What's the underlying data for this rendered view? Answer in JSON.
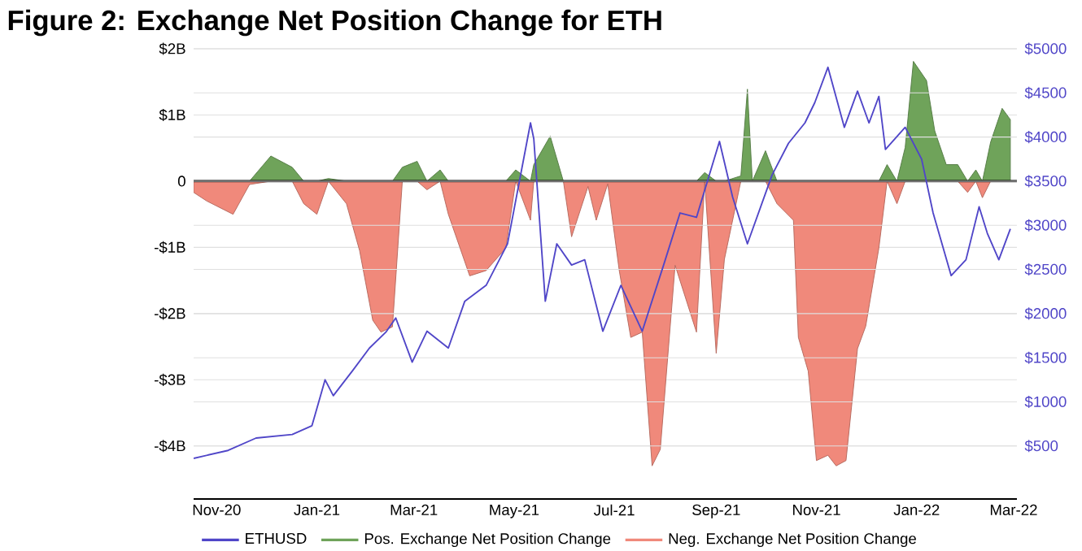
{
  "chart_data": {
    "type": "area",
    "title": "Figure 2: Exchange Net Position Change for ETH",
    "xlim": [
      "2020-10-18",
      "2022-03-03"
    ],
    "xticks": [
      {
        "value": "2020-11-01",
        "label": "Nov-20"
      },
      {
        "value": "2021-01-01",
        "label": "Jan-21"
      },
      {
        "value": "2021-03-01",
        "label": "Mar-21"
      },
      {
        "value": "2021-05-01",
        "label": "May-21"
      },
      {
        "value": "2021-07-01",
        "label": "Jul-21"
      },
      {
        "value": "2021-09-01",
        "label": "Sep-21"
      },
      {
        "value": "2021-11-01",
        "label": "Nov-21"
      },
      {
        "value": "2022-01-01",
        "label": "Jan-22"
      },
      {
        "value": "2022-03-01",
        "label": "Mar-22"
      }
    ],
    "ylim": [
      -4.8,
      2
    ],
    "yticks": [
      {
        "value": 2,
        "label": "$2B"
      },
      {
        "value": 1,
        "label": "$1B"
      },
      0,
      {
        "value": -1,
        "label": "-$1B"
      },
      {
        "value": -2,
        "label": "-$2B"
      },
      {
        "value": -3,
        "label": "-$3B"
      },
      {
        "value": -4,
        "label": "-$4B"
      }
    ],
    "y2lim": [
      -100,
      5000
    ],
    "y2ticks": [
      {
        "value": 500,
        "label": "$500"
      },
      {
        "value": 1000,
        "label": "$1000"
      },
      {
        "value": 1500,
        "label": "$1500"
      },
      {
        "value": 2000,
        "label": "$2000"
      },
      {
        "value": 2500,
        "label": "$2500"
      },
      {
        "value": 3000,
        "label": "$3000"
      },
      {
        "value": 3500,
        "label": "$3500"
      },
      {
        "value": 4000,
        "label": "$4000"
      },
      {
        "value": 4500,
        "label": "$4500"
      },
      {
        "value": 5000,
        "label": "$5000"
      }
    ],
    "grid": "y",
    "legend": "bottom",
    "ref_lines": [
      {
        "axis": "y",
        "value": 0,
        "color": "#000000"
      }
    ],
    "x": [
      "2020-10-18",
      "2020-10-26",
      "2020-11-11",
      "2020-11-21",
      "2020-12-04",
      "2020-12-17",
      "2020-12-24",
      "2021-01-01",
      "2021-01-08",
      "2021-01-19",
      "2021-01-27",
      "2021-02-04",
      "2021-02-09",
      "2021-02-16",
      "2021-02-22",
      "2021-03-03",
      "2021-03-09",
      "2021-03-17",
      "2021-03-22",
      "2021-04-04",
      "2021-04-14",
      "2021-04-26",
      "2021-05-02",
      "2021-05-11",
      "2021-05-13",
      "2021-05-23",
      "2021-05-31",
      "2021-06-05",
      "2021-06-15",
      "2021-06-20",
      "2021-06-27",
      "2021-07-04",
      "2021-07-11",
      "2021-07-18",
      "2021-07-24",
      "2021-07-29",
      "2021-08-07",
      "2021-08-20",
      "2021-08-25",
      "2021-09-01",
      "2021-09-06",
      "2021-09-16",
      "2021-09-20",
      "2021-09-23",
      "2021-10-01",
      "2021-10-08",
      "2021-10-18",
      "2021-10-21",
      "2021-10-27",
      "2021-11-01",
      "2021-11-08",
      "2021-11-13",
      "2021-11-19",
      "2021-11-26",
      "2021-12-01",
      "2021-12-09",
      "2021-12-14",
      "2021-12-20",
      "2021-12-25",
      "2021-12-30",
      "2022-01-07",
      "2022-01-12",
      "2022-01-19",
      "2022-01-26",
      "2022-02-01",
      "2022-02-06",
      "2022-02-10",
      "2022-02-15",
      "2022-02-22",
      "2022-02-27"
    ],
    "series": [
      {
        "name": "ETHUSD",
        "type": "line",
        "axis": "y2",
        "color": "#5046c8",
        "x": [
          "2020-10-18",
          "2020-11-08",
          "2020-11-25",
          "2020-12-17",
          "2020-12-29",
          "2021-01-06",
          "2021-01-11",
          "2021-01-23",
          "2021-02-02",
          "2021-02-12",
          "2021-02-18",
          "2021-02-28",
          "2021-03-09",
          "2021-03-22",
          "2021-04-01",
          "2021-04-14",
          "2021-04-27",
          "2021-05-11",
          "2021-05-13",
          "2021-05-20",
          "2021-05-27",
          "2021-06-05",
          "2021-06-13",
          "2021-06-24",
          "2021-07-05",
          "2021-07-18",
          "2021-07-31",
          "2021-08-10",
          "2021-08-20",
          "2021-09-03",
          "2021-09-11",
          "2021-09-20",
          "2021-10-05",
          "2021-10-15",
          "2021-10-25",
          "2021-10-31",
          "2021-11-08",
          "2021-11-18",
          "2021-11-26",
          "2021-12-03",
          "2021-12-09",
          "2021-12-13",
          "2021-12-25",
          "2022-01-04",
          "2022-01-11",
          "2022-01-22",
          "2022-01-31",
          "2022-02-08",
          "2022-02-13",
          "2022-02-20",
          "2022-02-27"
        ],
        "values": [
          360,
          450,
          590,
          630,
          730,
          1250,
          1070,
          1360,
          1610,
          1790,
          1950,
          1450,
          1800,
          1610,
          2140,
          2320,
          2790,
          4160,
          3980,
          2140,
          2790,
          2550,
          2610,
          1800,
          2320,
          1800,
          2550,
          3140,
          3090,
          3950,
          3320,
          2790,
          3570,
          3930,
          4160,
          4390,
          4790,
          4110,
          4520,
          4160,
          4460,
          3860,
          4110,
          3750,
          3140,
          2430,
          2610,
          3210,
          2910,
          2610,
          2960
        ]
      },
      {
        "name": "Pos. Exchange Net Position Change",
        "color": "#6fa35a",
        "values": [
          0,
          0,
          0,
          0,
          0.38,
          0.21,
          0,
          0,
          0.04,
          0,
          0,
          0,
          0,
          0,
          0.21,
          0.3,
          0,
          0.17,
          0,
          0,
          0,
          0,
          0.17,
          0,
          0.25,
          0.68,
          0,
          0,
          0,
          0,
          0,
          0,
          0,
          0,
          0,
          0,
          0,
          0,
          0.13,
          0,
          0,
          0.08,
          1.39,
          0,
          0.46,
          0,
          0,
          0,
          0,
          0,
          0,
          0,
          0,
          0,
          0,
          0,
          0.25,
          0,
          0.51,
          1.81,
          1.52,
          0.76,
          0.25,
          0.25,
          0,
          0.17,
          0,
          0.59,
          1.1,
          0.93
        ]
      },
      {
        "name": "Neg. Exchange Net Position Change",
        "color": "#f0897b",
        "values": [
          -0.17,
          -0.3,
          -0.5,
          -0.05,
          0,
          0,
          -0.34,
          -0.5,
          0,
          -0.34,
          -1.05,
          -2.1,
          -2.28,
          -2.2,
          0,
          0,
          -0.13,
          0,
          -0.5,
          -1.43,
          -1.35,
          -1.01,
          0,
          -0.59,
          0,
          0,
          0,
          -0.84,
          -0.08,
          -0.59,
          -0.04,
          -1.35,
          -2.36,
          -2.28,
          -4.3,
          -4.05,
          -1.27,
          -2.28,
          0,
          -2.6,
          -1.18,
          0,
          0,
          0,
          0,
          -0.34,
          -0.59,
          -2.36,
          -2.87,
          -4.22,
          -4.14,
          -4.3,
          -4.22,
          -2.53,
          -2.19,
          -1.01,
          0,
          -0.34,
          0,
          0,
          0,
          0,
          0,
          0,
          -0.17,
          0,
          -0.25,
          0,
          0,
          0
        ]
      }
    ]
  }
}
